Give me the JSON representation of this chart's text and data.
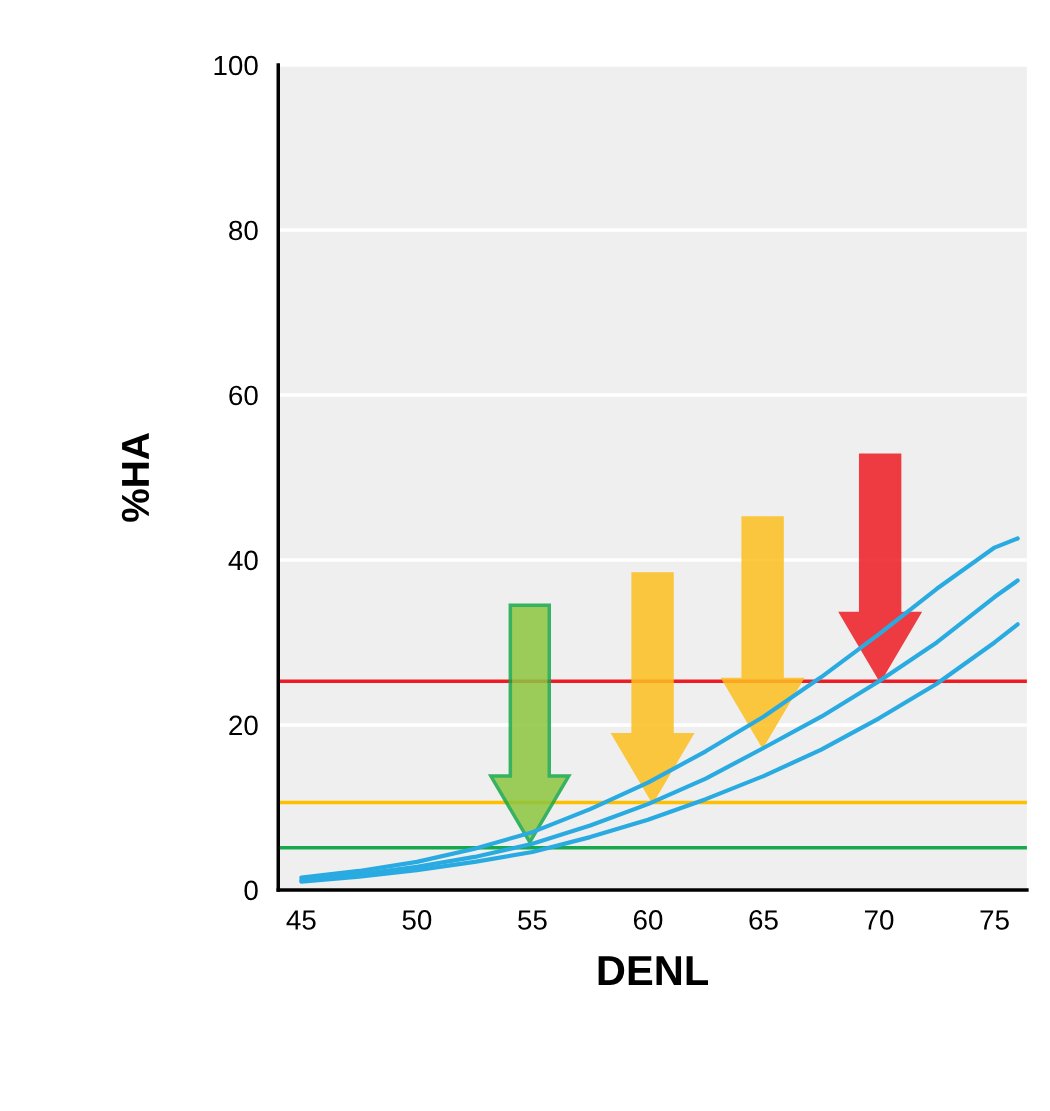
{
  "chart_data": {
    "type": "line",
    "xlabel": "DENL",
    "ylabel": "%HA",
    "xlim": [
      44,
      76.4
    ],
    "xticks": [
      45,
      50,
      55,
      60,
      65,
      70,
      75
    ],
    "ylim": [
      0,
      100
    ],
    "yticks": [
      0,
      20,
      40,
      60,
      80,
      100
    ],
    "grid": "y",
    "legend": false,
    "series": [
      {
        "color": "#29abe2",
        "x": [
          45,
          47.5,
          50,
          52.5,
          55,
          57.5,
          60,
          62.5,
          65,
          67.5,
          70,
          72.5,
          75,
          76
        ],
        "values": [
          1.5,
          2.3,
          3.4,
          5,
          7,
          9.8,
          13,
          16.8,
          21,
          25.8,
          31,
          36.5,
          41.5,
          42.6
        ]
      },
      {
        "color": "#29abe2",
        "x": [
          45,
          47.5,
          50,
          52.5,
          55,
          57.5,
          60,
          62.5,
          65,
          67.5,
          70,
          72.5,
          75,
          76
        ],
        "values": [
          1.2,
          1.9,
          2.8,
          4,
          5.6,
          7.8,
          10.4,
          13.5,
          17.2,
          21,
          25.3,
          30,
          35.5,
          37.5
        ]
      },
      {
        "color": "#29abe2",
        "x": [
          45,
          47.5,
          50,
          52.5,
          55,
          57.5,
          60,
          62.5,
          65,
          67.5,
          70,
          72.5,
          75,
          76
        ],
        "values": [
          1,
          1.6,
          2.4,
          3.4,
          4.6,
          6.4,
          8.5,
          11,
          13.8,
          17,
          20.8,
          25,
          30,
          32.2
        ]
      }
    ],
    "ref_lines": [
      {
        "axis": "y",
        "value": 25.3,
        "color": "#ee1c25"
      },
      {
        "axis": "y",
        "value": 10.6,
        "color": "#fdbf00"
      },
      {
        "axis": "y",
        "value": 5.1,
        "color": "#16a84a"
      }
    ]
  }
}
